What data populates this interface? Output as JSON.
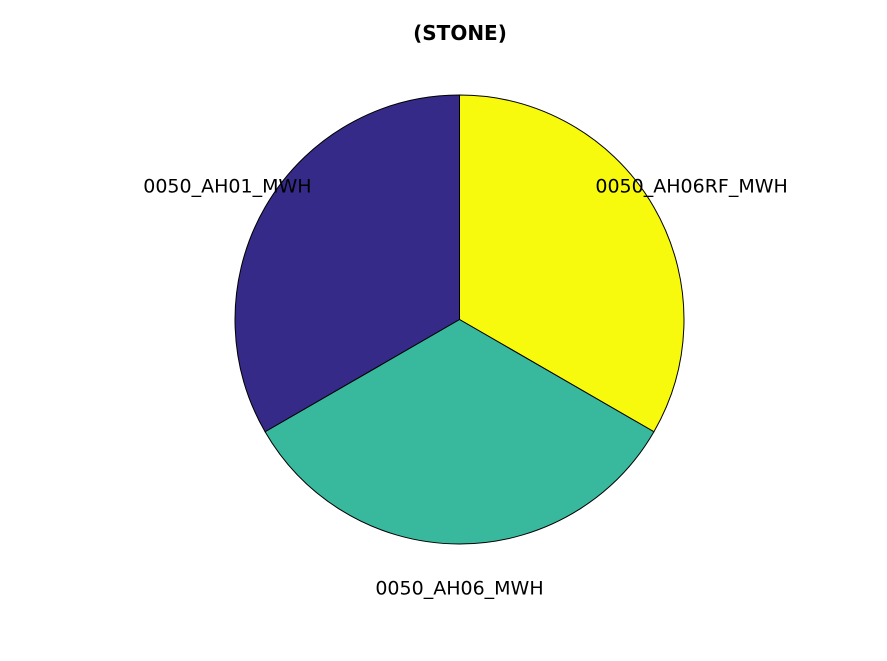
{
  "chart_data": {
    "type": "pie",
    "title": "(STONE)",
    "slices": [
      {
        "label": "0050_AH06RF_MWH",
        "value": 33.333,
        "color": "#f8fa0d"
      },
      {
        "label": "0050_AH06_MWH",
        "value": 33.333,
        "color": "#38b99e"
      },
      {
        "label": "0050_AH01_MWH",
        "value": 33.333,
        "color": "#352a87"
      }
    ],
    "start_angle": "top",
    "direction": "clockwise",
    "legend": "none"
  }
}
